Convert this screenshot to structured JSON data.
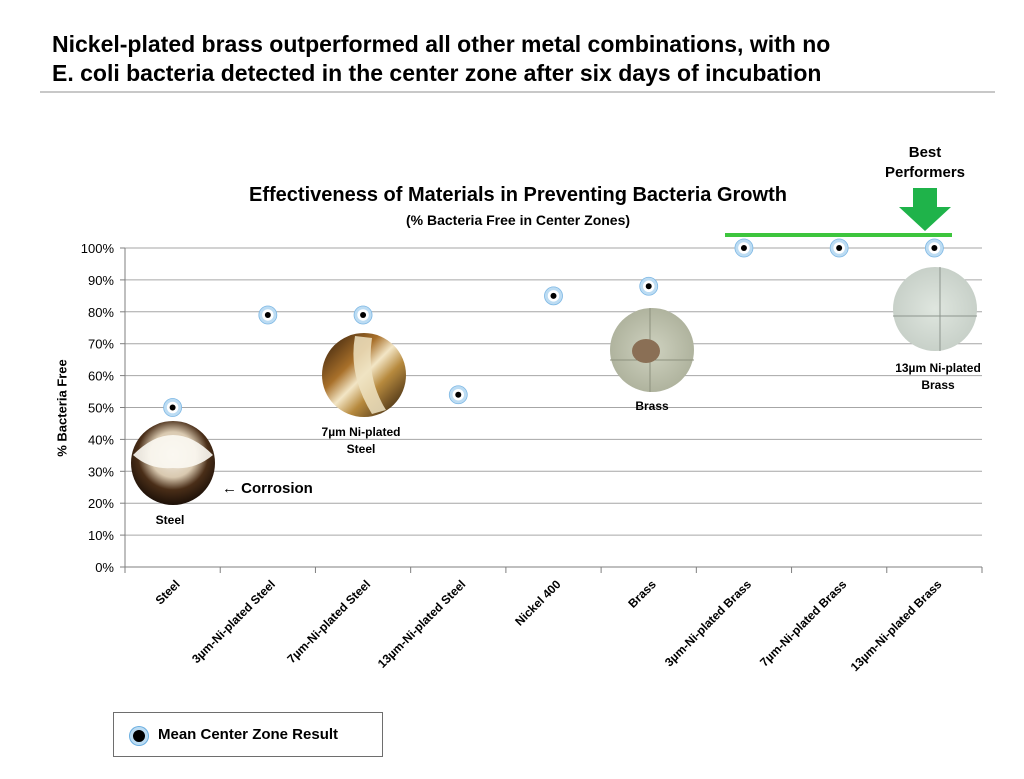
{
  "slide": {
    "title_line1": "Nickel-plated brass outperformed all other metal combinations, with no",
    "title_line2": "E. coli bacteria detected in the center zone after six days of incubation"
  },
  "best": {
    "line1": "Best",
    "line2": "Performers",
    "highlight_color": "#3dc53d",
    "icon": "down-arrow-icon"
  },
  "legend": {
    "label": "Mean Center Zone Result",
    "marker_fill": "#000000",
    "marker_ring": "#bcdcf3"
  },
  "photos": [
    {
      "label": "Steel",
      "annotation": "← Corrosion",
      "category": "Steel"
    },
    {
      "label": "7µm Ni-plated Steel",
      "category": "7µm-Ni-plated Steel"
    },
    {
      "label": "Brass",
      "category": "Brass"
    },
    {
      "label": "13µm Ni-plated Brass",
      "category": "13µm-Ni-plated Brass"
    }
  ],
  "chart_data": {
    "type": "scatter",
    "title": "Effectiveness of Materials in Preventing Bacteria Growth",
    "subtitle": "(% Bacteria Free in Center Zones)",
    "xlabel": "",
    "ylabel": "% Bacteria Free",
    "ylim": [
      0,
      100
    ],
    "yticks": [
      "0%",
      "10%",
      "20%",
      "30%",
      "40%",
      "50%",
      "60%",
      "70%",
      "80%",
      "90%",
      "100%"
    ],
    "grid": true,
    "categories": [
      "Steel",
      "3µm-Ni-plated Steel",
      "7µm-Ni-plated Steel",
      "13µm-Ni-plated Steel",
      "Nickel 400",
      "Brass",
      "3µm-Ni-plated Brass",
      "7µm-Ni-plated Brass",
      "13µm-Ni-plated Brass"
    ],
    "series": [
      {
        "name": "Mean Center Zone Result",
        "values": [
          50,
          79,
          79,
          54,
          85,
          88,
          100,
          100,
          100
        ]
      }
    ],
    "legend_position": "bottom-left"
  }
}
